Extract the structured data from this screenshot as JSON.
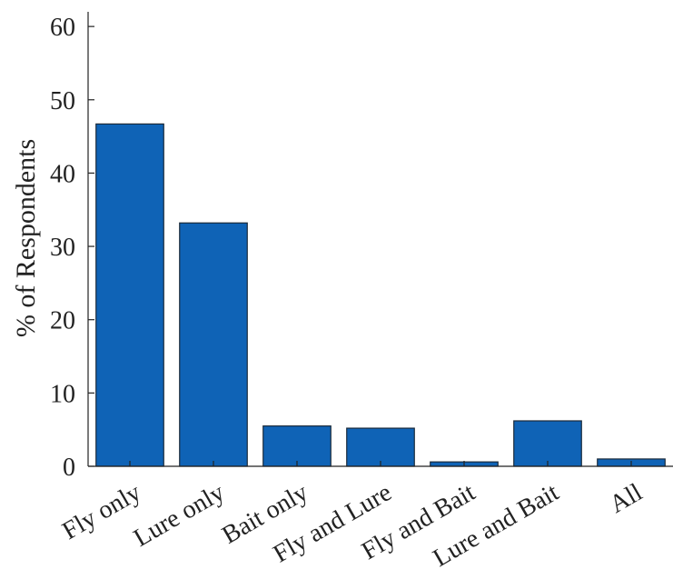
{
  "chart_data": {
    "type": "bar",
    "categories": [
      "Fly only",
      "Lure only",
      "Bait only",
      "Fly and Lure",
      "Fly and Bait",
      "Lure and Bait",
      "All"
    ],
    "values": [
      46.7,
      33.2,
      5.5,
      5.2,
      0.6,
      6.2,
      1.0
    ],
    "title": "",
    "xlabel": "",
    "ylabel": "% of Respondents",
    "ylim": [
      0,
      62
    ],
    "yticks": [
      0,
      10,
      20,
      30,
      40,
      50,
      60
    ],
    "grid": false,
    "bar_color": "#0f63b6"
  }
}
